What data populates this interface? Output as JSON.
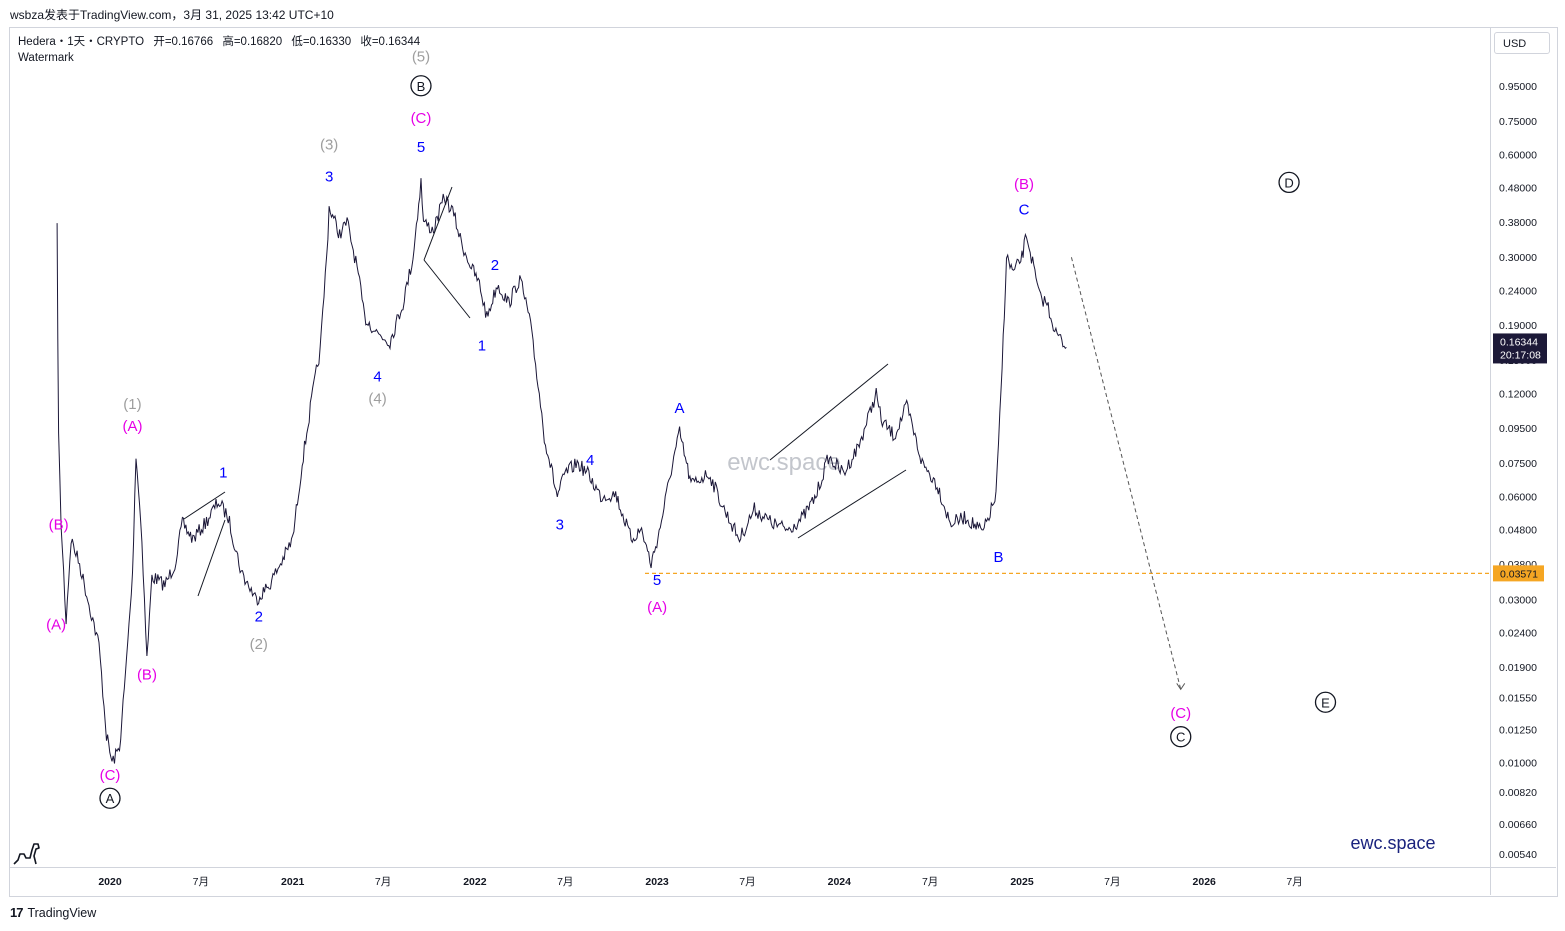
{
  "header": {
    "publish_line": "wsbza发表于TradingView.com，3月 31, 2025 13:42 UTC+10"
  },
  "legend": {
    "symbol": "Hedera・1天・CRYPTO",
    "open": "开=0.16766",
    "high": "高=0.16820",
    "low": "低=0.16330",
    "close": "收=0.16344",
    "watermark_label": "Watermark"
  },
  "price_axis": {
    "currency": "USD",
    "current_price": "0.16344",
    "countdown": "20:17:08",
    "level_label": "0.03571"
  },
  "footer": {
    "brand": "TradingView",
    "site": "ewc.space",
    "watermark": "ewc.space"
  },
  "colors": {
    "price_line": "#1b1738",
    "wave_blue": "#0000ff",
    "wave_magenta": "#e600e6",
    "wave_grey": "#9e9e9e",
    "level": "#f5a623",
    "current_price_tag": "#1c1938"
  },
  "chart_data": {
    "type": "line",
    "scale": "log",
    "ylim": [
      0.005,
      1.1
    ],
    "y_ticks": [
      "0.95000",
      "0.75000",
      "0.60000",
      "0.48000",
      "0.38000",
      "0.30000",
      "0.24000",
      "0.19000",
      "0.15000",
      "0.12000",
      "0.09500",
      "0.07500",
      "0.06000",
      "0.04800",
      "0.03800",
      "0.03000",
      "0.02400",
      "0.01900",
      "0.01550",
      "0.01250",
      "0.01000",
      "0.00820",
      "0.00660",
      "0.00540"
    ],
    "x_ticks": [
      "2020",
      "7月",
      "2021",
      "7月",
      "2022",
      "7月",
      "2023",
      "7月",
      "2024",
      "7月",
      "2025",
      "7月",
      "2026",
      "7月"
    ],
    "horizontal_level": 0.03571,
    "series": [
      {
        "values": [
          [
            "2019-09-17",
            0.36
          ],
          [
            "2019-09-20",
            0.09
          ],
          [
            "2019-09-25",
            0.05
          ],
          [
            "2019-10-05",
            0.026
          ],
          [
            "2019-10-15",
            0.045
          ],
          [
            "2019-11-01",
            0.038
          ],
          [
            "2019-11-20",
            0.029
          ],
          [
            "2019-12-10",
            0.022
          ],
          [
            "2019-12-25",
            0.012
          ],
          [
            "2020-01-05",
            0.01
          ],
          [
            "2020-01-20",
            0.011
          ],
          [
            "2020-02-01",
            0.018
          ],
          [
            "2020-02-15",
            0.035
          ],
          [
            "2020-02-22",
            0.08
          ],
          [
            "2020-03-05",
            0.045
          ],
          [
            "2020-03-15",
            0.02
          ],
          [
            "2020-03-25",
            0.035
          ],
          [
            "2020-04-20",
            0.033
          ],
          [
            "2020-05-10",
            0.038
          ],
          [
            "2020-05-25",
            0.05
          ],
          [
            "2020-06-15",
            0.045
          ],
          [
            "2020-07-10",
            0.05
          ],
          [
            "2020-08-05",
            0.058
          ],
          [
            "2020-08-25",
            0.052
          ],
          [
            "2020-09-20",
            0.036
          ],
          [
            "2020-10-20",
            0.03
          ],
          [
            "2020-11-15",
            0.033
          ],
          [
            "2020-12-15",
            0.04
          ],
          [
            "2021-01-01",
            0.045
          ],
          [
            "2021-01-20",
            0.075
          ],
          [
            "2021-02-10",
            0.12
          ],
          [
            "2021-02-25",
            0.16
          ],
          [
            "2021-03-10",
            0.3
          ],
          [
            "2021-03-15",
            0.42
          ],
          [
            "2021-04-05",
            0.35
          ],
          [
            "2021-04-20",
            0.38
          ],
          [
            "2021-05-10",
            0.28
          ],
          [
            "2021-05-25",
            0.2
          ],
          [
            "2021-06-20",
            0.18
          ],
          [
            "2021-07-15",
            0.17
          ],
          [
            "2021-08-10",
            0.22
          ],
          [
            "2021-08-30",
            0.3
          ],
          [
            "2021-09-15",
            0.5
          ],
          [
            "2021-09-20",
            0.38
          ],
          [
            "2021-10-10",
            0.36
          ],
          [
            "2021-11-01",
            0.45
          ],
          [
            "2021-11-20",
            0.4
          ],
          [
            "2021-12-05",
            0.33
          ],
          [
            "2021-12-25",
            0.28
          ],
          [
            "2022-01-10",
            0.25
          ],
          [
            "2022-01-25",
            0.2
          ],
          [
            "2022-02-15",
            0.25
          ],
          [
            "2022-03-10",
            0.22
          ],
          [
            "2022-04-01",
            0.26
          ],
          [
            "2022-04-20",
            0.2
          ],
          [
            "2022-05-10",
            0.12
          ],
          [
            "2022-05-20",
            0.09
          ],
          [
            "2022-06-15",
            0.06
          ],
          [
            "2022-07-01",
            0.07
          ],
          [
            "2022-07-25",
            0.075
          ],
          [
            "2022-08-15",
            0.07
          ],
          [
            "2022-09-10",
            0.06
          ],
          [
            "2022-10-10",
            0.061
          ],
          [
            "2022-11-10",
            0.045
          ],
          [
            "2022-12-01",
            0.048
          ],
          [
            "2022-12-20",
            0.038
          ],
          [
            "2023-01-05",
            0.047
          ],
          [
            "2023-02-01",
            0.075
          ],
          [
            "2023-02-15",
            0.092
          ],
          [
            "2023-03-10",
            0.065
          ],
          [
            "2023-04-15",
            0.07
          ],
          [
            "2023-05-15",
            0.055
          ],
          [
            "2023-06-15",
            0.045
          ],
          [
            "2023-07-15",
            0.055
          ],
          [
            "2023-08-20",
            0.05
          ],
          [
            "2023-09-20",
            0.048
          ],
          [
            "2023-10-20",
            0.052
          ],
          [
            "2023-11-15",
            0.06
          ],
          [
            "2023-12-10",
            0.078
          ],
          [
            "2024-01-10",
            0.07
          ],
          [
            "2024-02-10",
            0.085
          ],
          [
            "2024-03-15",
            0.12
          ],
          [
            "2024-03-25",
            0.1
          ],
          [
            "2024-04-20",
            0.09
          ],
          [
            "2024-05-15",
            0.11
          ],
          [
            "2024-06-15",
            0.075
          ],
          [
            "2024-07-15",
            0.065
          ],
          [
            "2024-08-10",
            0.05
          ],
          [
            "2024-09-10",
            0.052
          ],
          [
            "2024-10-15",
            0.047
          ],
          [
            "2024-11-10",
            0.06
          ],
          [
            "2024-11-20",
            0.12
          ],
          [
            "2024-12-01",
            0.3
          ],
          [
            "2024-12-15",
            0.27
          ],
          [
            "2025-01-01",
            0.3
          ],
          [
            "2025-01-10",
            0.35
          ],
          [
            "2025-01-20",
            0.3
          ],
          [
            "2025-02-05",
            0.23
          ],
          [
            "2025-02-20",
            0.22
          ],
          [
            "2025-03-10",
            0.18
          ],
          [
            "2025-03-31",
            0.16344
          ]
        ]
      }
    ],
    "projection": [
      [
        "2025-03-31",
        0.3
      ],
      [
        "2025-11-15",
        0.0155
      ]
    ],
    "wave_labels": [
      {
        "text": "(B)",
        "date": "2019-09-20",
        "price": 0.048,
        "color": "magenta"
      },
      {
        "text": "(A)",
        "date": "2019-09-15",
        "price": 0.0245,
        "color": "magenta"
      },
      {
        "text": "(1)",
        "date": "2020-02-15",
        "price": 0.108,
        "color": "grey"
      },
      {
        "text": "(A)",
        "date": "2020-02-15",
        "price": 0.093,
        "color": "magenta"
      },
      {
        "text": "(B)",
        "date": "2020-03-15",
        "price": 0.0175,
        "color": "magenta"
      },
      {
        "text": "(C)",
        "date": "2020-01-01",
        "price": 0.0089,
        "color": "magenta"
      },
      {
        "text": "A",
        "date": "2020-01-01",
        "price": 0.0076,
        "color": "black",
        "circled": true
      },
      {
        "text": "1",
        "date": "2020-08-15",
        "price": 0.068,
        "color": "blue"
      },
      {
        "text": "2",
        "date": "2020-10-25",
        "price": 0.0258,
        "color": "blue"
      },
      {
        "text": "(2)",
        "date": "2020-10-25",
        "price": 0.0215,
        "color": "grey"
      },
      {
        "text": "(3)",
        "date": "2021-03-15",
        "price": 0.62,
        "color": "grey"
      },
      {
        "text": "3",
        "date": "2021-03-15",
        "price": 0.5,
        "color": "blue"
      },
      {
        "text": "4",
        "date": "2021-06-20",
        "price": 0.13,
        "color": "blue"
      },
      {
        "text": "(4)",
        "date": "2021-06-20",
        "price": 0.112,
        "color": "grey"
      },
      {
        "text": "(5)",
        "date": "2021-09-15",
        "price": 1.12,
        "color": "grey"
      },
      {
        "text": "B",
        "date": "2021-09-15",
        "price": 0.92,
        "color": "black",
        "circled": true
      },
      {
        "text": "(C)",
        "date": "2021-09-15",
        "price": 0.74,
        "color": "magenta"
      },
      {
        "text": "5",
        "date": "2021-09-15",
        "price": 0.61,
        "color": "blue"
      },
      {
        "text": "2",
        "date": "2022-02-10",
        "price": 0.275,
        "color": "blue"
      },
      {
        "text": "1",
        "date": "2022-01-15",
        "price": 0.16,
        "color": "blue"
      },
      {
        "text": "3",
        "date": "2022-06-20",
        "price": 0.048,
        "color": "blue"
      },
      {
        "text": "4",
        "date": "2022-08-20",
        "price": 0.074,
        "color": "blue"
      },
      {
        "text": "5",
        "date": "2023-01-01",
        "price": 0.033,
        "color": "blue"
      },
      {
        "text": "(A)",
        "date": "2023-01-01",
        "price": 0.0275,
        "color": "magenta"
      },
      {
        "text": "A",
        "date": "2023-02-15",
        "price": 0.105,
        "color": "blue"
      },
      {
        "text": "B",
        "date": "2024-11-15",
        "price": 0.0385,
        "color": "blue"
      },
      {
        "text": "(B)",
        "date": "2025-01-05",
        "price": 0.475,
        "color": "magenta"
      },
      {
        "text": "C",
        "date": "2025-01-05",
        "price": 0.4,
        "color": "blue"
      },
      {
        "text": "D",
        "date": "2026-06-20",
        "price": 0.48,
        "color": "black",
        "circled": true
      },
      {
        "text": "(C)",
        "date": "2025-11-15",
        "price": 0.0135,
        "color": "magenta"
      },
      {
        "text": "C",
        "date": "2025-11-15",
        "price": 0.0115,
        "color": "black",
        "circled": true
      },
      {
        "text": "E",
        "date": "2026-09-01",
        "price": 0.0145,
        "color": "black",
        "circled": true
      }
    ]
  }
}
